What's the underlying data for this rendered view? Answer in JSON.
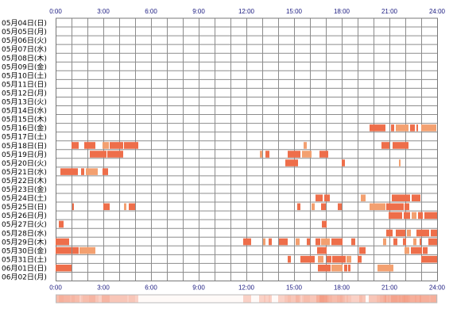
{
  "chart_data": {
    "type": "heatmap",
    "x_ticks": [
      "0:00",
      "3:00",
      "6:00",
      "9:00",
      "12:00",
      "15:00",
      "18:00",
      "21:00",
      "24:00"
    ],
    "x_range_hours": [
      0,
      24
    ],
    "grid_step_hours": 1,
    "rows": [
      {
        "label": "05月04日(日)",
        "segments": []
      },
      {
        "label": "05月05日(月)",
        "segments": []
      },
      {
        "label": "05月06日(火)",
        "segments": []
      },
      {
        "label": "05月07日(水)",
        "segments": []
      },
      {
        "label": "05月08日(木)",
        "segments": []
      },
      {
        "label": "05月09日(金)",
        "segments": []
      },
      {
        "label": "05月10日(土)",
        "segments": []
      },
      {
        "label": "05月11日(日)",
        "segments": []
      },
      {
        "label": "05月12日(月)",
        "segments": []
      },
      {
        "label": "05月13日(火)",
        "segments": []
      },
      {
        "label": "05月14日(水)",
        "segments": []
      },
      {
        "label": "05月15日(木)",
        "segments": []
      },
      {
        "label": "05月16日(金)",
        "segments": [
          [
            19.75,
            20.75
          ],
          [
            21.1,
            21.3
          ],
          [
            21.4,
            22.2
          ],
          [
            22.3,
            22.6
          ],
          [
            22.7,
            22.8
          ],
          [
            23.0,
            23.95
          ]
        ]
      },
      {
        "label": "05月17日(土)",
        "segments": []
      },
      {
        "label": "05月18日(日)",
        "segments": [
          [
            1.0,
            1.45
          ],
          [
            1.8,
            2.5
          ],
          [
            2.95,
            3.35
          ],
          [
            3.4,
            4.25
          ],
          [
            4.3,
            5.2
          ],
          [
            15.6,
            15.8
          ],
          [
            20.5,
            21.0
          ],
          [
            21.2,
            22.2
          ]
        ]
      },
      {
        "label": "05月19日(月)",
        "segments": [
          [
            2.15,
            3.2
          ],
          [
            3.25,
            4.25
          ],
          [
            12.85,
            13.0
          ],
          [
            13.2,
            13.45
          ],
          [
            14.6,
            15.4
          ],
          [
            15.5,
            16.1
          ],
          [
            16.6,
            17.15
          ]
        ]
      },
      {
        "label": "05月20日(火)",
        "segments": [
          [
            14.45,
            15.25
          ],
          [
            18.0,
            18.2
          ],
          [
            21.6,
            21.7
          ]
        ]
      },
      {
        "label": "05月21日(水)",
        "segments": [
          [
            0.3,
            1.4
          ],
          [
            1.6,
            1.8
          ],
          [
            1.9,
            2.65
          ],
          [
            2.95,
            3.3
          ]
        ]
      },
      {
        "label": "05月22日(木)",
        "segments": []
      },
      {
        "label": "05月23日(金)",
        "segments": []
      },
      {
        "label": "05月24日(土)",
        "segments": [
          [
            16.35,
            16.8
          ],
          [
            16.9,
            17.25
          ],
          [
            19.2,
            19.5
          ],
          [
            21.15,
            22.3
          ],
          [
            22.4,
            22.95
          ]
        ]
      },
      {
        "label": "05月25日(日)",
        "segments": [
          [
            1.05,
            1.15
          ],
          [
            3.0,
            3.4
          ],
          [
            4.3,
            4.45
          ],
          [
            4.6,
            5.0
          ],
          [
            15.2,
            15.4
          ],
          [
            16.1,
            16.3
          ],
          [
            16.7,
            17.0
          ],
          [
            17.75,
            18.0
          ],
          [
            19.75,
            20.75
          ],
          [
            20.8,
            21.9
          ],
          [
            21.95,
            22.25
          ]
        ]
      },
      {
        "label": "05月26日(月)",
        "segments": [
          [
            20.95,
            21.8
          ],
          [
            21.9,
            22.3
          ],
          [
            22.4,
            22.7
          ],
          [
            22.8,
            23.1
          ],
          [
            23.2,
            24.0
          ]
        ]
      },
      {
        "label": "05月27日(火)",
        "segments": [
          [
            0.2,
            0.5
          ],
          [
            16.75,
            17.05
          ]
        ]
      },
      {
        "label": "05月28日(水)",
        "segments": [
          [
            20.8,
            21.2
          ],
          [
            21.4,
            22.0
          ],
          [
            22.1,
            22.35
          ],
          [
            22.7,
            23.5
          ],
          [
            23.6,
            24.0
          ]
        ]
      },
      {
        "label": "05月29日(木)",
        "segments": [
          [
            0.0,
            0.85
          ],
          [
            11.8,
            12.3
          ],
          [
            13.05,
            13.2
          ],
          [
            13.4,
            13.6
          ],
          [
            14.05,
            14.6
          ],
          [
            15.1,
            15.35
          ],
          [
            15.8,
            16.0
          ],
          [
            16.35,
            16.65
          ],
          [
            16.7,
            17.25
          ],
          [
            17.35,
            18.05
          ],
          [
            18.6,
            18.85
          ],
          [
            20.6,
            20.8
          ],
          [
            21.25,
            21.5
          ],
          [
            21.85,
            22.05
          ],
          [
            22.5,
            22.7
          ],
          [
            22.9,
            23.0
          ],
          [
            23.45,
            24.0
          ]
        ]
      },
      {
        "label": "05月30日(金)",
        "segments": [
          [
            0.0,
            1.0
          ],
          [
            1.05,
            1.45
          ],
          [
            1.5,
            2.5
          ],
          [
            16.45,
            17.05
          ],
          [
            19.1,
            19.5
          ],
          [
            21.95,
            22.25
          ],
          [
            22.35,
            23.05
          ],
          [
            23.1,
            23.4
          ]
        ]
      },
      {
        "label": "05月31日(土)",
        "segments": [
          [
            14.6,
            14.8
          ],
          [
            15.4,
            16.3
          ],
          [
            16.5,
            16.85
          ],
          [
            17.05,
            17.35
          ],
          [
            17.4,
            18.25
          ],
          [
            18.3,
            18.6
          ],
          [
            19.0,
            19.25
          ],
          [
            23.0,
            24.0
          ]
        ]
      },
      {
        "label": "06月01日(日)",
        "segments": [
          [
            0.0,
            1.0
          ],
          [
            16.5,
            17.3
          ],
          [
            17.35,
            18.05
          ],
          [
            18.15,
            18.35
          ],
          [
            18.4,
            18.55
          ],
          [
            20.25,
            21.25
          ]
        ]
      },
      {
        "label": "06月02日(月)",
        "segments": []
      }
    ],
    "summary_strip": "hourly-activity-density"
  },
  "colors": {
    "grid": "#8c8c8c",
    "border": "#777777",
    "segment_fill": "#ee6e4a",
    "segment_fill_light": "#f3a070",
    "density_base": "#ffffff",
    "density_peak": "#f7b0a0",
    "tick_text": "#1a1a80"
  }
}
